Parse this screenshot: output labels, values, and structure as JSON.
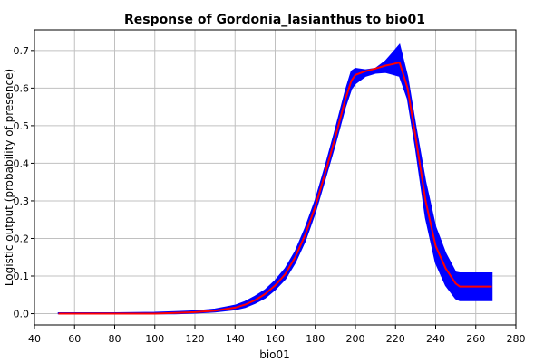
{
  "chart_data": {
    "type": "line",
    "title": "Response of Gordonia_lasianthus to bio01",
    "xlabel": "bio01",
    "ylabel": "Logistic output (probability of presence)",
    "xlim": [
      40,
      280
    ],
    "ylim": [
      -0.03,
      0.755
    ],
    "xticks": [
      40,
      60,
      80,
      100,
      120,
      140,
      160,
      180,
      200,
      220,
      240,
      260,
      280
    ],
    "yticks": [
      0.0,
      0.1,
      0.2,
      0.3,
      0.4,
      0.5,
      0.6,
      0.7
    ],
    "ytick_labels": [
      "0.0",
      "0.1",
      "0.2",
      "0.3",
      "0.4",
      "0.5",
      "0.6",
      "0.7"
    ],
    "grid": true,
    "colors": {
      "mean": "#ff0000",
      "band": "#0000ff",
      "grid": "#c0c0c0",
      "axis": "#000000"
    },
    "series": [
      {
        "role": "mean",
        "x": [
          52,
          80,
          100,
          110,
          120,
          130,
          140,
          145,
          150,
          155,
          160,
          165,
          170,
          175,
          180,
          185,
          190,
          195,
          198,
          200,
          205,
          210,
          215,
          218,
          222,
          226,
          230,
          235,
          240,
          245,
          250,
          252,
          268
        ],
        "y": [
          0.0,
          0.0,
          0.0,
          0.002,
          0.004,
          0.008,
          0.016,
          0.024,
          0.036,
          0.052,
          0.075,
          0.105,
          0.15,
          0.21,
          0.285,
          0.375,
          0.47,
          0.57,
          0.62,
          0.635,
          0.645,
          0.652,
          0.66,
          0.663,
          0.668,
          0.6,
          0.47,
          0.3,
          0.18,
          0.12,
          0.08,
          0.072,
          0.072
        ]
      },
      {
        "role": "band",
        "x": [
          52,
          80,
          100,
          110,
          120,
          130,
          140,
          145,
          150,
          155,
          160,
          165,
          170,
          175,
          180,
          185,
          190,
          195,
          198,
          200,
          205,
          210,
          215,
          218,
          222,
          226,
          230,
          235,
          240,
          245,
          250,
          252,
          268
        ],
        "upper": [
          0.002,
          0.002,
          0.003,
          0.005,
          0.007,
          0.012,
          0.022,
          0.032,
          0.046,
          0.063,
          0.088,
          0.12,
          0.165,
          0.228,
          0.302,
          0.392,
          0.49,
          0.592,
          0.645,
          0.652,
          0.648,
          0.652,
          0.672,
          0.69,
          0.715,
          0.63,
          0.5,
          0.35,
          0.23,
          0.16,
          0.11,
          0.108,
          0.108
        ],
        "lower": [
          0.0,
          0.0,
          0.0,
          0.0,
          0.002,
          0.005,
          0.011,
          0.017,
          0.028,
          0.042,
          0.064,
          0.092,
          0.136,
          0.194,
          0.27,
          0.36,
          0.452,
          0.55,
          0.598,
          0.612,
          0.632,
          0.64,
          0.642,
          0.638,
          0.632,
          0.572,
          0.44,
          0.255,
          0.135,
          0.075,
          0.04,
          0.035,
          0.035
        ]
      }
    ]
  }
}
